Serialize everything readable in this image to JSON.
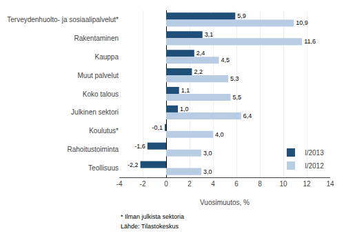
{
  "chart_data": {
    "type": "bar",
    "orientation": "horizontal",
    "categories": [
      "Terveydenhuolto- ja sosiaalipalvelut*",
      "Rakentaminen",
      "Kauppa",
      "Muut palvelut",
      "Koko talous",
      "Julkinen sektori",
      "Koulutus*",
      "Rahoitustoiminta",
      "Teollisuus"
    ],
    "series": [
      {
        "name": "I/2013",
        "color": "#1f4e79",
        "values": [
          5.9,
          3.1,
          2.4,
          2.2,
          1.1,
          1.0,
          -0.1,
          -1.6,
          -2.2
        ],
        "value_labels": [
          "5,9",
          "3,1",
          "2,4",
          "2,2",
          "1,1",
          "1,0",
          "-0,1",
          "-1,6",
          "-2,2"
        ]
      },
      {
        "name": "I/2012",
        "color": "#b8cce4",
        "values": [
          10.9,
          11.6,
          4.5,
          5.3,
          5.5,
          6.4,
          4.0,
          3.0,
          3.0
        ],
        "value_labels": [
          "10,9",
          "11,6",
          "4,5",
          "5,3",
          "5,5",
          "6,4",
          "4,0",
          "3,0",
          "3,0"
        ]
      }
    ],
    "xlabel": "Vuosimuutos, %",
    "xlim": [
      -4,
      14
    ],
    "xticks": [
      -4,
      -2,
      0,
      2,
      4,
      6,
      8,
      10,
      12,
      14
    ],
    "grid": true,
    "legend": "lower right",
    "data_labels": true,
    "annotations": [
      "* Ilman julkista sektoria",
      "Lähde: Tilastokeskus"
    ]
  }
}
